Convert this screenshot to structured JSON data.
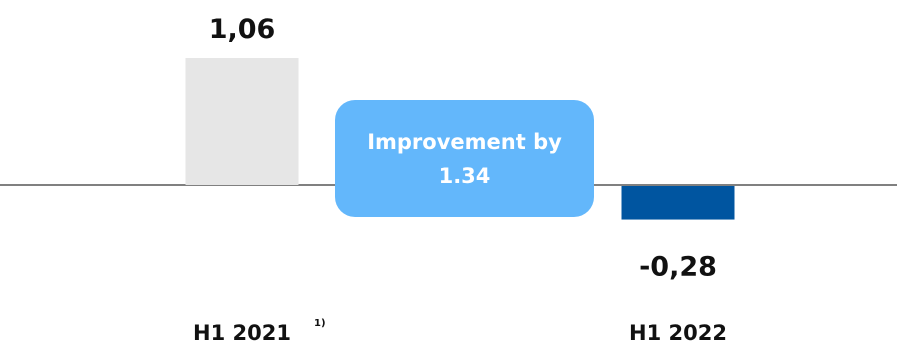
{
  "chart_data": {
    "type": "bar",
    "categories": [
      "H1 2021",
      "H1 2022"
    ],
    "values": [
      1.06,
      -0.28
    ],
    "value_labels": [
      "1,06",
      "-0,28"
    ],
    "footnote_marker": "1)",
    "bar_colors": [
      "#e6e6e6",
      "#0055a0"
    ],
    "axis_color": "#808080",
    "annotation": {
      "line1": "Improvement by",
      "line2": "1.34",
      "background": "#63b7fb",
      "text_color": "#ffffff"
    },
    "title": "",
    "xlabel": "",
    "ylabel": "",
    "grid": false,
    "legend": "none"
  }
}
